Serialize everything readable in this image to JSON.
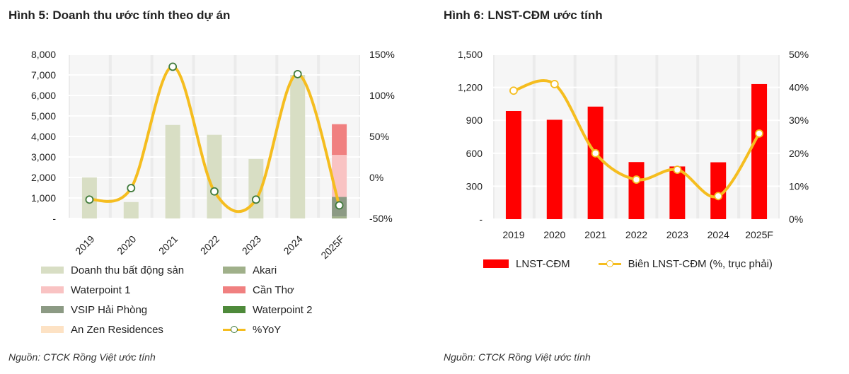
{
  "figures": [
    {
      "title": "Hình 5: Doanh thu ước tính theo dự án",
      "source": "Nguồn:  CTCK Rồng Việt ước tính",
      "legend": [
        {
          "label": "Doanh thu bất động sản",
          "color": "#d8dec4",
          "kind": "bar"
        },
        {
          "label": "Akari",
          "color": "#a0b08a",
          "kind": "bar"
        },
        {
          "label": "Waterpoint 1",
          "color": "#f9c3c3",
          "kind": "bar"
        },
        {
          "label": "Cần Thơ",
          "color": "#f08080",
          "kind": "bar"
        },
        {
          "label": "VSIP Hải Phòng",
          "color": "#8c9a84",
          "kind": "bar"
        },
        {
          "label": "Waterpoint 2",
          "color": "#4e8a3a",
          "kind": "bar"
        },
        {
          "label": "An Zen Residences",
          "color": "#fde2c4",
          "kind": "bar"
        },
        {
          "label": "%YoY",
          "color": "#f5bd1f",
          "kind": "line"
        }
      ]
    },
    {
      "title": "Hình 6: LNST-CĐM ước tính",
      "source": "Nguồn: CTCK Rồng Việt ước tính",
      "legend": [
        {
          "label": "LNST-CĐM",
          "color": "#ff0000",
          "kind": "bar"
        },
        {
          "label": "Biên LNST-CĐM (%, trục phải)",
          "color": "#f5bd1f",
          "kind": "line"
        }
      ]
    }
  ],
  "chart_data": [
    {
      "type": "bar",
      "title": "Hình 5: Doanh thu ước tính theo dự án",
      "categories": [
        "2019",
        "2020",
        "2021",
        "2022",
        "2023",
        "2024",
        "2025F"
      ],
      "ylim": [
        0,
        8000
      ],
      "yticks": [
        "-",
        "1,000",
        "2,000",
        "3,000",
        "4,000",
        "5,000",
        "6,000",
        "7,000",
        "8,000"
      ],
      "y2lim": [
        -50,
        150
      ],
      "y2ticks": [
        "-50%",
        "0%",
        "50%",
        "100%",
        "150%"
      ],
      "stacked": true,
      "series": [
        {
          "name": "Doanh thu bất động sản",
          "values": [
            2000,
            800,
            4560,
            4080,
            2900,
            7000,
            0
          ],
          "color": "#d8dec4"
        },
        {
          "name": "Akari",
          "values": [
            0,
            0,
            0,
            0,
            0,
            0,
            100
          ],
          "color": "#a0b08a"
        },
        {
          "name": "VSIP Hải Phòng",
          "values": [
            0,
            0,
            0,
            0,
            0,
            0,
            950
          ],
          "color": "#8c9a84"
        },
        {
          "name": "Waterpoint 1",
          "values": [
            0,
            0,
            0,
            0,
            0,
            0,
            2050
          ],
          "color": "#f9c3c3"
        },
        {
          "name": "Cần Thơ",
          "values": [
            0,
            0,
            0,
            0,
            0,
            0,
            1500
          ],
          "color": "#f08080"
        }
      ],
      "line": {
        "name": "%YoY",
        "values": [
          -27,
          -13,
          135,
          -17,
          -27,
          126,
          -34
        ],
        "color": "#f5bd1f",
        "marker_edge": "#3f7a3a"
      },
      "grid": true
    },
    {
      "type": "bar",
      "title": "Hình 6: LNST-CĐM ước tính",
      "categories": [
        "2019",
        "2020",
        "2021",
        "2022",
        "2023",
        "2024",
        "2025F"
      ],
      "ylim": [
        0,
        1500
      ],
      "yticks": [
        "-",
        "300",
        "600",
        "900",
        "1,200",
        "1,500"
      ],
      "y2lim": [
        0,
        50
      ],
      "y2ticks": [
        "0%",
        "10%",
        "20%",
        "30%",
        "40%",
        "50%"
      ],
      "series": [
        {
          "name": "LNST-CĐM",
          "values": [
            985,
            905,
            1025,
            520,
            480,
            518,
            1230
          ],
          "color": "#ff0000"
        }
      ],
      "line": {
        "name": "Biên LNST-CĐM (%, trục phải)",
        "values": [
          39,
          41,
          20,
          12,
          15,
          7,
          26
        ],
        "color": "#f5bd1f",
        "marker_edge": "#f5bd1f"
      },
      "grid": true
    }
  ]
}
